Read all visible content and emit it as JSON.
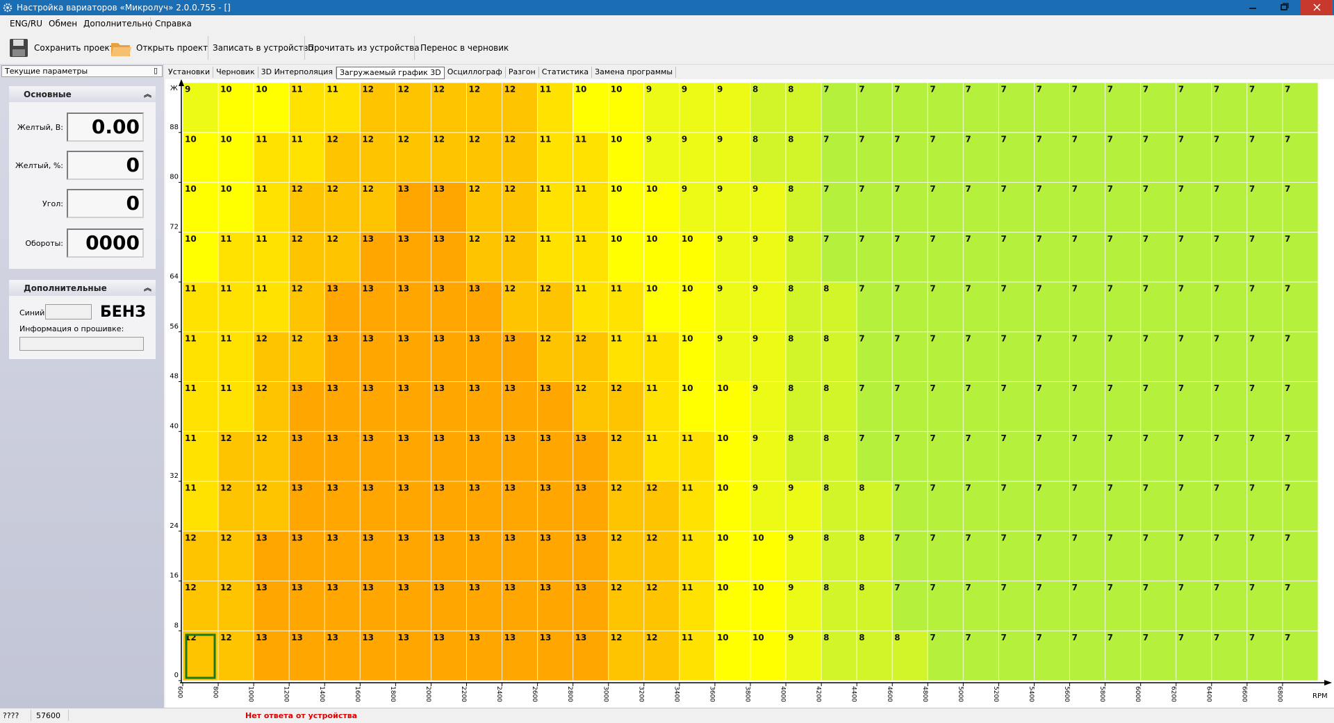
{
  "window": {
    "title": "Настройка вариаторов «Микролуч» 2.0.0.755 - []"
  },
  "menu": [
    "ENG/RU",
    "Обмен",
    "Дополнительно",
    "Справка"
  ],
  "toolbar": [
    "Сохранить проект",
    "Открыть проект",
    "Записать в устройство",
    "Прочитать из устройства",
    "Перенос в черновик"
  ],
  "left_panel": {
    "title": "Текущие параметры",
    "main": {
      "title": "Основные",
      "fields": [
        {
          "label": "Желтый, В:",
          "value": "0.00"
        },
        {
          "label": "Желтый, %:",
          "value": "0"
        },
        {
          "label": "Угол:",
          "value": "0"
        },
        {
          "label": "Обороты:",
          "value": "0000"
        }
      ]
    },
    "extra": {
      "title": "Дополнительные",
      "blue_label": "Синий:",
      "fuel": "БЕНЗ",
      "firmware_label": "Информация о прошивке:"
    }
  },
  "tabs": [
    {
      "label": "Установки",
      "active": false
    },
    {
      "label": "Черновик",
      "active": false
    },
    {
      "label": "3D Интерполяция",
      "active": false
    },
    {
      "label": "Загружаемый график 3D",
      "active": true
    },
    {
      "label": "Осциллограф",
      "active": false
    },
    {
      "label": "Разгон",
      "active": false
    },
    {
      "label": "Статистика",
      "active": false
    },
    {
      "label": "Замена программы",
      "active": false
    }
  ],
  "status": [
    "????",
    "57600",
    "Нет ответа от устройства"
  ],
  "chart_data": {
    "type": "heatmap",
    "xlabel": "RPM",
    "ylabel": "Ж",
    "x": [
      600,
      800,
      1000,
      1200,
      1400,
      1600,
      1800,
      2000,
      2200,
      2400,
      2600,
      2800,
      3000,
      3200,
      3400,
      3600,
      3800,
      4000,
      4200,
      4400,
      4600,
      4800,
      5000,
      5200,
      5400,
      5600,
      5800,
      6000,
      6200,
      6400,
      6600,
      6800
    ],
    "y": [
      0,
      8,
      16,
      24,
      32,
      40,
      48,
      56,
      64,
      72,
      80,
      88
    ],
    "xlim": [
      600,
      7000
    ],
    "ylim": [
      0,
      96
    ],
    "xticks": [
      600,
      800,
      1000,
      1200,
      1400,
      1600,
      1800,
      2000,
      2200,
      2400,
      2600,
      2800,
      3000,
      3200,
      3400,
      3600,
      3800,
      4000,
      4200,
      4400,
      4600,
      4800,
      5000,
      5200,
      5400,
      5600,
      5800,
      6000,
      6200,
      6400,
      6600,
      6800
    ],
    "yticks": [
      0,
      8,
      16,
      24,
      32,
      40,
      48,
      56,
      64,
      72,
      80,
      88
    ],
    "colorscale": [
      "#b4f03c",
      "#d2f52a",
      "#ecfa16",
      "#ffff00",
      "#ffe200",
      "#ffc400",
      "#ffa600"
    ],
    "z": [
      [
        12,
        12,
        13,
        13,
        13,
        13,
        13,
        13,
        13,
        13,
        13,
        13,
        12,
        12,
        11,
        10,
        10,
        9,
        8,
        8,
        8,
        7,
        7,
        7,
        7,
        7,
        7,
        7,
        7,
        7,
        7,
        7
      ],
      [
        12,
        12,
        13,
        13,
        13,
        13,
        13,
        13,
        13,
        13,
        13,
        13,
        12,
        12,
        11,
        10,
        10,
        9,
        8,
        8,
        7,
        7,
        7,
        7,
        7,
        7,
        7,
        7,
        7,
        7,
        7,
        7
      ],
      [
        12,
        12,
        13,
        13,
        13,
        13,
        13,
        13,
        13,
        13,
        13,
        13,
        12,
        12,
        11,
        10,
        10,
        9,
        8,
        8,
        7,
        7,
        7,
        7,
        7,
        7,
        7,
        7,
        7,
        7,
        7,
        7
      ],
      [
        11,
        12,
        12,
        13,
        13,
        13,
        13,
        13,
        13,
        13,
        13,
        13,
        12,
        12,
        11,
        10,
        9,
        9,
        8,
        8,
        7,
        7,
        7,
        7,
        7,
        7,
        7,
        7,
        7,
        7,
        7,
        7
      ],
      [
        11,
        12,
        12,
        13,
        13,
        13,
        13,
        13,
        13,
        13,
        13,
        13,
        12,
        11,
        11,
        10,
        9,
        8,
        8,
        7,
        7,
        7,
        7,
        7,
        7,
        7,
        7,
        7,
        7,
        7,
        7,
        7
      ],
      [
        11,
        11,
        12,
        13,
        13,
        13,
        13,
        13,
        13,
        13,
        13,
        12,
        12,
        11,
        10,
        10,
        9,
        8,
        8,
        7,
        7,
        7,
        7,
        7,
        7,
        7,
        7,
        7,
        7,
        7,
        7,
        7
      ],
      [
        11,
        11,
        12,
        12,
        13,
        13,
        13,
        13,
        13,
        13,
        12,
        12,
        11,
        11,
        10,
        9,
        9,
        8,
        8,
        7,
        7,
        7,
        7,
        7,
        7,
        7,
        7,
        7,
        7,
        7,
        7,
        7
      ],
      [
        11,
        11,
        11,
        12,
        13,
        13,
        13,
        13,
        13,
        12,
        12,
        11,
        11,
        10,
        10,
        9,
        9,
        8,
        8,
        7,
        7,
        7,
        7,
        7,
        7,
        7,
        7,
        7,
        7,
        7,
        7,
        7
      ],
      [
        10,
        11,
        11,
        12,
        12,
        13,
        13,
        13,
        12,
        12,
        11,
        11,
        10,
        10,
        10,
        9,
        9,
        8,
        7,
        7,
        7,
        7,
        7,
        7,
        7,
        7,
        7,
        7,
        7,
        7,
        7,
        7
      ],
      [
        10,
        10,
        11,
        12,
        12,
        12,
        13,
        13,
        12,
        12,
        11,
        11,
        10,
        10,
        9,
        9,
        9,
        8,
        7,
        7,
        7,
        7,
        7,
        7,
        7,
        7,
        7,
        7,
        7,
        7,
        7,
        7
      ],
      [
        10,
        10,
        11,
        11,
        12,
        12,
        12,
        12,
        12,
        12,
        11,
        11,
        10,
        9,
        9,
        9,
        8,
        8,
        7,
        7,
        7,
        7,
        7,
        7,
        7,
        7,
        7,
        7,
        7,
        7,
        7,
        7
      ],
      [
        9,
        10,
        10,
        11,
        11,
        12,
        12,
        12,
        12,
        12,
        11,
        10,
        10,
        9,
        9,
        9,
        8,
        8,
        7,
        7,
        7,
        7,
        7,
        7,
        7,
        7,
        7,
        7,
        7,
        7,
        7,
        7
      ]
    ]
  }
}
